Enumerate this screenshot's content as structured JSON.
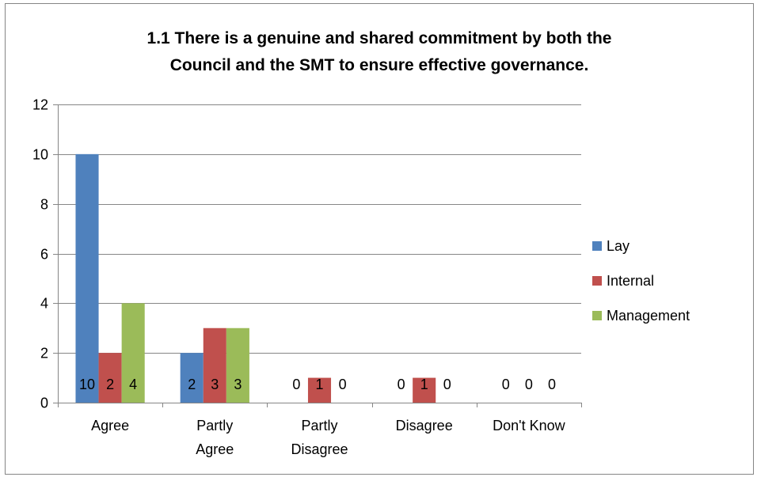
{
  "chart_data": {
    "type": "bar",
    "title_lines": [
      "1.1 There is a genuine and shared commitment by both the",
      "Council and the SMT to ensure effective governance."
    ],
    "categories": [
      [
        "Agree"
      ],
      [
        "Partly",
        "Agree"
      ],
      [
        "Partly",
        "Disagree"
      ],
      [
        "Disagree"
      ],
      [
        "Don't Know"
      ]
    ],
    "series": [
      {
        "name": "Lay",
        "color": "#4f81bd",
        "values": [
          10,
          2,
          0,
          0,
          0
        ]
      },
      {
        "name": "Internal",
        "color": "#c0504d",
        "values": [
          2,
          3,
          1,
          1,
          0
        ]
      },
      {
        "name": "Management",
        "color": "#9bbb59",
        "values": [
          4,
          3,
          0,
          0,
          0
        ]
      }
    ],
    "ylim": [
      0,
      12
    ],
    "yticks": [
      "0",
      "2",
      "4",
      "6",
      "8",
      "10",
      "12"
    ],
    "ytick_values": [
      0,
      2,
      4,
      6,
      8,
      10,
      12
    ],
    "grid": true,
    "legend_position": "right",
    "data_labels": true,
    "colors": {
      "gridline": "#868686",
      "axis": "#868686",
      "frame": "#868686"
    }
  }
}
